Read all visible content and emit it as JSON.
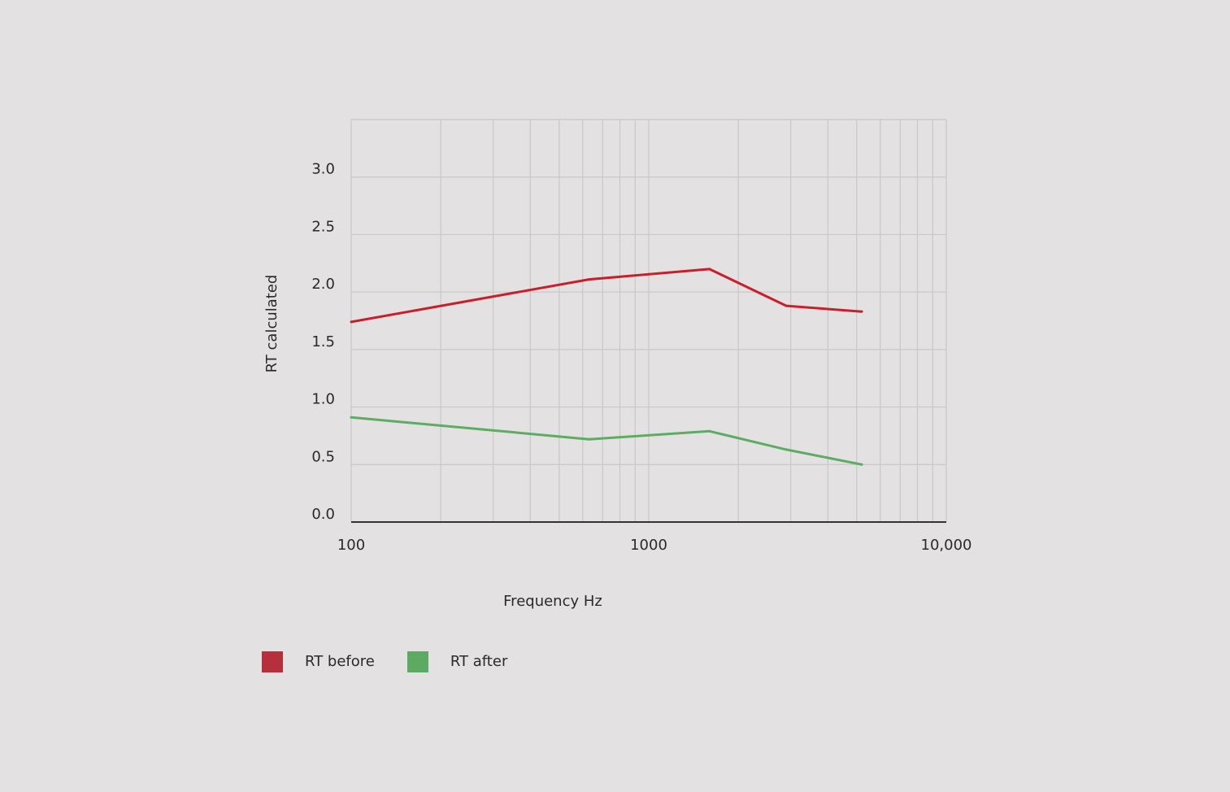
{
  "colors": {
    "background": "#e3e1e1",
    "grid": "#c9c7c7",
    "axis": "#333333",
    "text": "#2a2a2a"
  },
  "chart_data": {
    "type": "line",
    "x_scale": "log",
    "xlabel": "Frequency Hz",
    "ylabel": "RT calculated",
    "xlim": [
      100,
      10000
    ],
    "ylim": [
      0,
      3.5
    ],
    "grid": true,
    "x_ticks": [
      {
        "value": 100,
        "label": "100"
      },
      {
        "value": 1000,
        "label": "1000"
      },
      {
        "value": 10000,
        "label": "10,000"
      }
    ],
    "y_ticks": [
      {
        "value": 0.0,
        "label": "0.0"
      },
      {
        "value": 0.5,
        "label": "0.5"
      },
      {
        "value": 1.0,
        "label": "1.0"
      },
      {
        "value": 1.5,
        "label": "1.5"
      },
      {
        "value": 2.0,
        "label": "2.0"
      },
      {
        "value": 2.5,
        "label": "2.5"
      },
      {
        "value": 3.0,
        "label": "3.0"
      }
    ],
    "legend_position": "bottom-left",
    "series": [
      {
        "name": "RT before",
        "color": "#c8202a",
        "legend_color": "#b5303a",
        "x": [
          100,
          630,
          1600,
          2900,
          5200
        ],
        "y": [
          1.74,
          2.11,
          2.2,
          1.88,
          1.83
        ]
      },
      {
        "name": "RT after",
        "color": "#5cad62",
        "legend_color": "#5cab63",
        "x": [
          100,
          630,
          1600,
          2900,
          5200
        ],
        "y": [
          0.91,
          0.72,
          0.79,
          0.63,
          0.5
        ]
      }
    ]
  }
}
